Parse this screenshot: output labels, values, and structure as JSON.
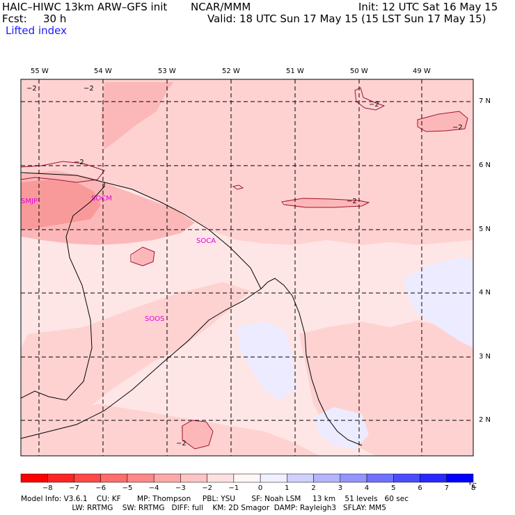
{
  "header": {
    "title": "HAIC–HIWC 13km ARW–GFS init",
    "org": "NCAR/MMM",
    "init": "Init: 12 UTC Sat 16 May 15",
    "fcst_label": "Fcst:",
    "fcst_value": "30 h",
    "valid": "Valid: 18 UTC Sun 17 May 15 (15 LST Sun 17 May 15)",
    "field": "Lifted index"
  },
  "map": {
    "lon_labels": [
      "55 W",
      "54 W",
      "53 W",
      "52 W",
      "51 W",
      "50 W",
      "49 W"
    ],
    "lat_labels": [
      "7 N",
      "6 N",
      "5 N",
      "4 N",
      "3 N",
      "2 N"
    ],
    "stations": [
      "SMJP",
      "SOCM",
      "SOCA",
      "SOOS"
    ],
    "contour_label": "−2",
    "colors": {
      "background": "#ffe6e6",
      "light": "#ffd2d2",
      "medium": "#fcb8b8",
      "strong": "#f99a9a",
      "cool": "#ecebff",
      "grid": "#000000",
      "coast": "#000000",
      "contour": "#a01030",
      "station": "#e000e0"
    }
  },
  "colorbar": {
    "labels": [
      "−8",
      "−7",
      "−6",
      "−5",
      "−4",
      "−3",
      "−2",
      "−1",
      "0",
      "1",
      "2",
      "3",
      "4",
      "5",
      "6",
      "7",
      "8"
    ],
    "unit": "°C",
    "colors": [
      "#ff0000",
      "#ff2424",
      "#ff4848",
      "#ff6c6c",
      "#ff8888",
      "#ffa8a8",
      "#ffc4c4",
      "#ffe0e0",
      "#fff6f6",
      "#f0f0ff",
      "#d0d0ff",
      "#b4b4ff",
      "#9494ff",
      "#7070ff",
      "#4c4cff",
      "#2828ff",
      "#0000ff"
    ]
  },
  "footer": {
    "line1": "Model Info: V3.6.1    CU: KF       MP: Thompson     PBL: YSU       SF: Noah LSM     13 km    51 levels   60 sec",
    "line2": "                      LW: RRTMG    SW: RRTMG   DIFF: full    KM: 2D Smagor  DAMP: Rayleigh3   SFLAY: MM5"
  }
}
